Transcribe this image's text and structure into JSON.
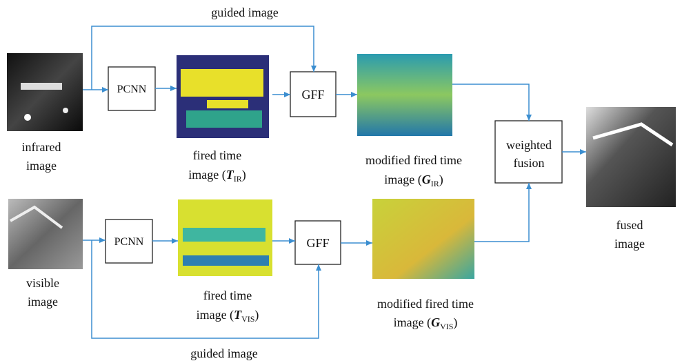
{
  "guided_top": "guided image",
  "guided_bottom": "guided image",
  "nodes": {
    "infrared": {
      "line1": "infrared",
      "line2": "image"
    },
    "visible": {
      "line1": "visible",
      "line2": "image"
    },
    "pcnn_top": "PCNN",
    "pcnn_bottom": "PCNN",
    "gff_top": "GFF",
    "gff_bottom": "GFF",
    "fired_ir": {
      "line1": "fired time",
      "prefix": "image (",
      "symbol": "T",
      "subscript": "IR",
      "suffix": ")"
    },
    "fired_vis": {
      "line1": "fired time",
      "prefix": "image (",
      "symbol": "T",
      "subscript": "VIS",
      "suffix": ")"
    },
    "modified_ir": {
      "line1": "modified fired time",
      "prefix": "image (",
      "symbol": "G",
      "subscript": "IR",
      "suffix": ")"
    },
    "modified_vis": {
      "line1": "modified fired time",
      "prefix": "image (",
      "symbol": "G",
      "subscript": "VIS",
      "suffix": ")"
    },
    "weighted": {
      "line1": "weighted",
      "line2": "fusion"
    },
    "fused": {
      "line1": "fused",
      "line2": "image"
    }
  }
}
